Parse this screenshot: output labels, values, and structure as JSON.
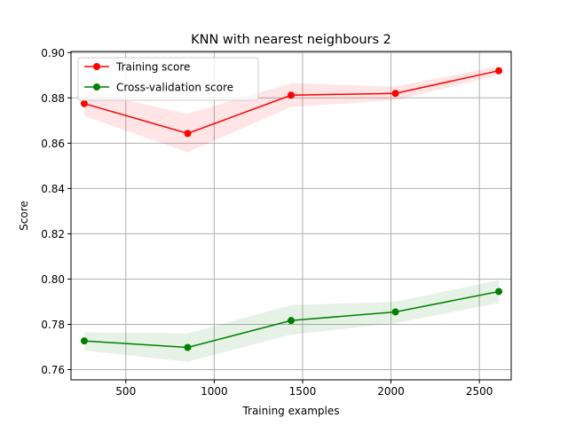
{
  "chart_data": {
    "type": "line",
    "title": "KNN  with nearest neighbours 2",
    "xlabel": "Training examples",
    "ylabel": "Score",
    "xlim": [
      190,
      2680
    ],
    "ylim": [
      0.7555,
      0.9005
    ],
    "xticks": [
      500,
      1000,
      1500,
      2000,
      2500
    ],
    "xtick_labels": [
      "500",
      "1000",
      "1500",
      "2000",
      "2500"
    ],
    "yticks": [
      0.76,
      0.78,
      0.8,
      0.82,
      0.84,
      0.86,
      0.88,
      0.9
    ],
    "ytick_labels": [
      "0.76",
      "0.78",
      "0.80",
      "0.82",
      "0.84",
      "0.86",
      "0.88",
      "0.90"
    ],
    "grid": true,
    "legend_position": "top-left",
    "x": [
      265,
      850,
      1435,
      2025,
      2610
    ],
    "series": [
      {
        "name": "Training score",
        "color": "#ff0000",
        "values": [
          0.8775,
          0.8643,
          0.8812,
          0.882,
          0.892
        ],
        "band_lower": [
          0.872,
          0.856,
          0.876,
          0.879,
          0.89
        ],
        "band_upper": [
          0.883,
          0.873,
          0.8865,
          0.885,
          0.894
        ]
      },
      {
        "name": "Cross-validation score",
        "color": "#008000",
        "values": [
          0.7727,
          0.7698,
          0.7817,
          0.7855,
          0.7945
        ],
        "band_lower": [
          0.7685,
          0.7635,
          0.7755,
          0.7805,
          0.7895
        ],
        "band_upper": [
          0.7765,
          0.776,
          0.7885,
          0.79,
          0.7995
        ]
      }
    ]
  }
}
